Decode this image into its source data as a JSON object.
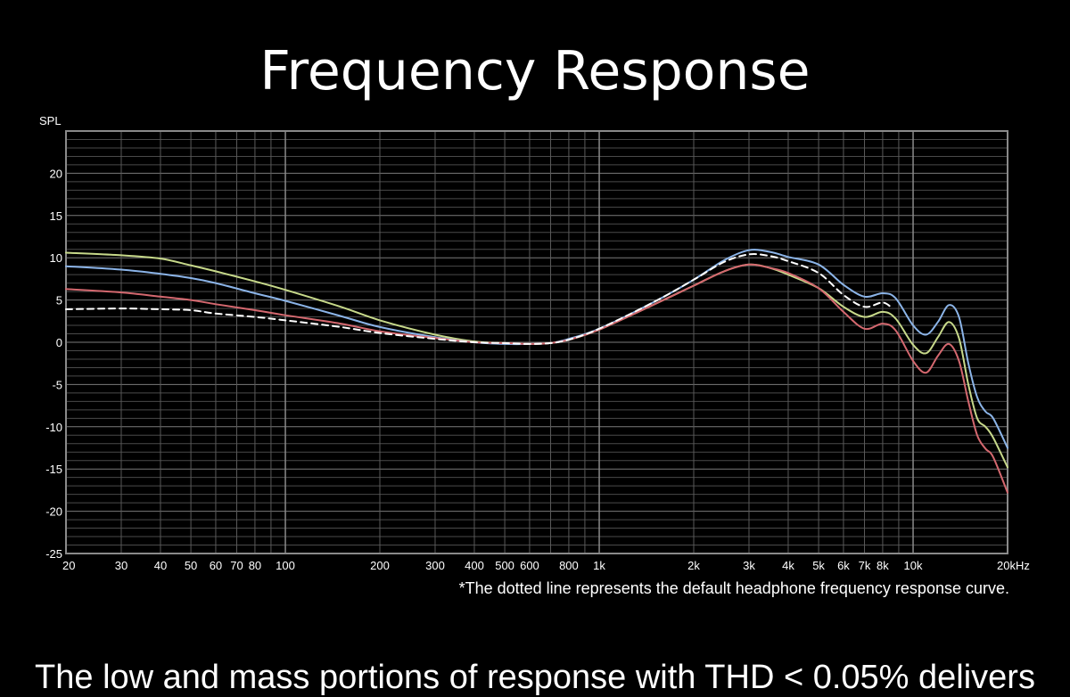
{
  "chart_data": {
    "type": "line",
    "title": "Frequency Response",
    "ylabel": "SPL",
    "xlabel": "",
    "xscale": "log",
    "xlim": [
      20,
      20000
    ],
    "ylim": [
      -25,
      25
    ],
    "grid": true,
    "legend": "none",
    "x_ticks": [
      {
        "value": 20,
        "label": "20"
      },
      {
        "value": 30,
        "label": "30"
      },
      {
        "value": 40,
        "label": "40"
      },
      {
        "value": 50,
        "label": "50"
      },
      {
        "value": 60,
        "label": "60"
      },
      {
        "value": 70,
        "label": "70"
      },
      {
        "value": 80,
        "label": "80"
      },
      {
        "value": 100,
        "label": "100"
      },
      {
        "value": 200,
        "label": "200"
      },
      {
        "value": 300,
        "label": "300"
      },
      {
        "value": 400,
        "label": "400"
      },
      {
        "value": 500,
        "label": "500"
      },
      {
        "value": 600,
        "label": "600"
      },
      {
        "value": 800,
        "label": "800"
      },
      {
        "value": 1000,
        "label": "1k"
      },
      {
        "value": 2000,
        "label": "2k"
      },
      {
        "value": 3000,
        "label": "3k"
      },
      {
        "value": 4000,
        "label": "4k"
      },
      {
        "value": 5000,
        "label": "5k"
      },
      {
        "value": 6000,
        "label": "6k"
      },
      {
        "value": 7000,
        "label": "7k"
      },
      {
        "value": 8000,
        "label": "8k"
      },
      {
        "value": 10000,
        "label": "10k"
      },
      {
        "value": 20000,
        "label": "20kHz"
      }
    ],
    "y_ticks": [
      {
        "value": 20,
        "label": "20"
      },
      {
        "value": 15,
        "label": "15"
      },
      {
        "value": 10,
        "label": "10"
      },
      {
        "value": 5,
        "label": "5"
      },
      {
        "value": 0,
        "label": "0"
      },
      {
        "value": -5,
        "label": "-5"
      },
      {
        "value": -10,
        "label": "-10"
      },
      {
        "value": -15,
        "label": "-15"
      },
      {
        "value": -20,
        "label": "-20"
      },
      {
        "value": -25,
        "label": "-25"
      }
    ],
    "series": [
      {
        "color": "#c7d98a",
        "dashed": false,
        "points": [
          [
            20,
            10.6
          ],
          [
            30,
            10.3
          ],
          [
            40,
            9.9
          ],
          [
            50,
            9.1
          ],
          [
            60,
            8.4
          ],
          [
            80,
            7.2
          ],
          [
            100,
            6.2
          ],
          [
            150,
            4.2
          ],
          [
            200,
            2.6
          ],
          [
            300,
            0.9
          ],
          [
            400,
            0.1
          ],
          [
            500,
            -0.1
          ],
          [
            600,
            -0.2
          ],
          [
            700,
            -0.1
          ],
          [
            800,
            0.3
          ],
          [
            1000,
            1.5
          ],
          [
            1500,
            4.5
          ],
          [
            2000,
            6.7
          ],
          [
            2500,
            8.4
          ],
          [
            3000,
            9.2
          ],
          [
            3500,
            8.8
          ],
          [
            4000,
            8.0
          ],
          [
            5000,
            6.4
          ],
          [
            6000,
            4.2
          ],
          [
            7000,
            3.0
          ],
          [
            8000,
            3.6
          ],
          [
            8800,
            2.8
          ],
          [
            10000,
            -0.3
          ],
          [
            11000,
            -1.3
          ],
          [
            12000,
            0.6
          ],
          [
            13000,
            2.4
          ],
          [
            14000,
            0.5
          ],
          [
            15000,
            -5.0
          ],
          [
            16000,
            -9.0
          ],
          [
            17000,
            -10.0
          ],
          [
            18000,
            -11.3
          ],
          [
            20000,
            -14.8
          ]
        ]
      },
      {
        "color": "#8bb4e8",
        "dashed": false,
        "points": [
          [
            20,
            9.0
          ],
          [
            30,
            8.6
          ],
          [
            40,
            8.1
          ],
          [
            50,
            7.6
          ],
          [
            60,
            7.0
          ],
          [
            80,
            5.8
          ],
          [
            100,
            4.9
          ],
          [
            150,
            3.1
          ],
          [
            200,
            1.8
          ],
          [
            300,
            0.6
          ],
          [
            400,
            0.0
          ],
          [
            500,
            -0.2
          ],
          [
            600,
            -0.2
          ],
          [
            700,
            -0.1
          ],
          [
            800,
            0.4
          ],
          [
            1000,
            1.6
          ],
          [
            1500,
            4.8
          ],
          [
            2000,
            7.4
          ],
          [
            2500,
            9.7
          ],
          [
            3000,
            10.9
          ],
          [
            3500,
            10.7
          ],
          [
            4000,
            10.1
          ],
          [
            5000,
            9.2
          ],
          [
            6000,
            6.8
          ],
          [
            7000,
            5.4
          ],
          [
            8000,
            5.8
          ],
          [
            8800,
            5.2
          ],
          [
            10000,
            2.0
          ],
          [
            11000,
            0.9
          ],
          [
            12000,
            2.4
          ],
          [
            13000,
            4.4
          ],
          [
            14000,
            3.0
          ],
          [
            15000,
            -2.5
          ],
          [
            16000,
            -6.5
          ],
          [
            17000,
            -8.2
          ],
          [
            18000,
            -9.0
          ],
          [
            20000,
            -12.5
          ]
        ]
      },
      {
        "color": "#d4686f",
        "dashed": false,
        "points": [
          [
            20,
            6.3
          ],
          [
            30,
            5.9
          ],
          [
            40,
            5.4
          ],
          [
            50,
            5.0
          ],
          [
            60,
            4.5
          ],
          [
            80,
            3.8
          ],
          [
            100,
            3.2
          ],
          [
            150,
            2.2
          ],
          [
            200,
            1.3
          ],
          [
            300,
            0.5
          ],
          [
            400,
            0.0
          ],
          [
            500,
            -0.1
          ],
          [
            600,
            -0.2
          ],
          [
            700,
            -0.1
          ],
          [
            800,
            0.3
          ],
          [
            1000,
            1.5
          ],
          [
            1500,
            4.5
          ],
          [
            2000,
            6.7
          ],
          [
            2500,
            8.4
          ],
          [
            3000,
            9.2
          ],
          [
            3500,
            8.8
          ],
          [
            4000,
            8.2
          ],
          [
            5000,
            6.4
          ],
          [
            6000,
            3.6
          ],
          [
            7000,
            1.6
          ],
          [
            8000,
            2.2
          ],
          [
            8800,
            1.4
          ],
          [
            10000,
            -2.2
          ],
          [
            11000,
            -3.6
          ],
          [
            12000,
            -1.6
          ],
          [
            13000,
            -0.2
          ],
          [
            14000,
            -2.2
          ],
          [
            15000,
            -7.0
          ],
          [
            16000,
            -11.0
          ],
          [
            17000,
            -12.6
          ],
          [
            18000,
            -13.6
          ],
          [
            20000,
            -17.8
          ]
        ]
      },
      {
        "color": "#ffffff",
        "dashed": true,
        "points": [
          [
            20,
            3.9
          ],
          [
            30,
            4.0
          ],
          [
            40,
            3.9
          ],
          [
            50,
            3.8
          ],
          [
            60,
            3.4
          ],
          [
            80,
            3.0
          ],
          [
            100,
            2.6
          ],
          [
            150,
            1.8
          ],
          [
            200,
            1.1
          ],
          [
            300,
            0.4
          ],
          [
            400,
            0.0
          ],
          [
            500,
            -0.1
          ],
          [
            600,
            -0.2
          ],
          [
            700,
            -0.1
          ],
          [
            800,
            0.3
          ],
          [
            1000,
            1.6
          ],
          [
            1500,
            4.8
          ],
          [
            2000,
            7.4
          ],
          [
            2500,
            9.5
          ],
          [
            3000,
            10.4
          ],
          [
            3500,
            10.2
          ],
          [
            4000,
            9.6
          ],
          [
            5000,
            8.2
          ],
          [
            6000,
            5.6
          ],
          [
            7000,
            4.2
          ],
          [
            8000,
            4.7
          ],
          [
            8600,
            4.0
          ]
        ]
      }
    ]
  },
  "note": "*The dotted line represents the default headphone frequency response curve.",
  "bottom_text": "The low and mass portions of response with THD < 0.05% delivers"
}
